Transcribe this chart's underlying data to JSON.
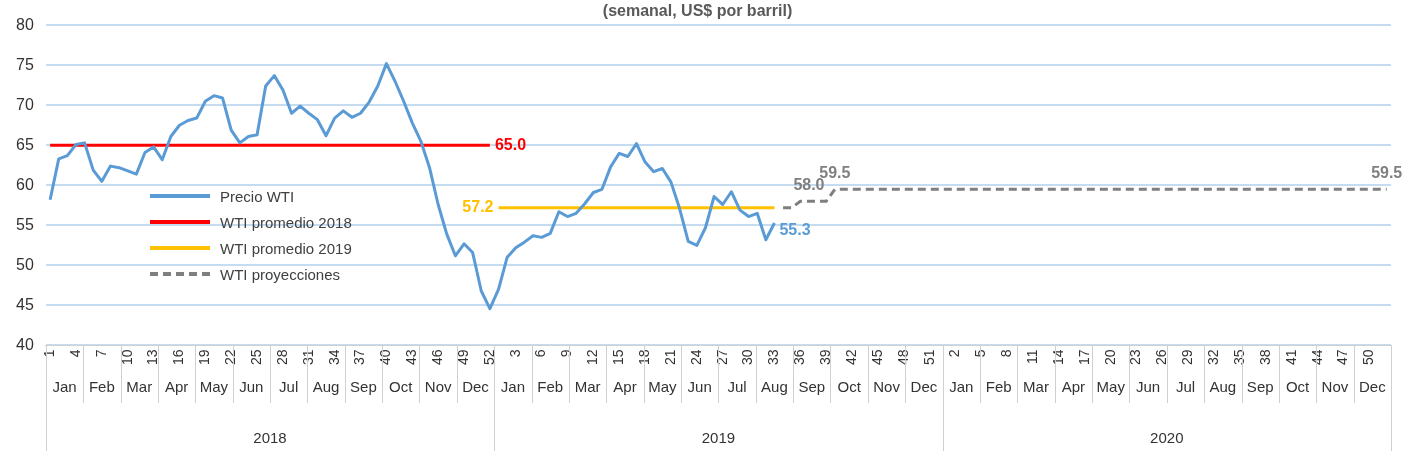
{
  "chart_data": {
    "type": "line",
    "title": "(semanal, US$ por barril)",
    "categories": [
      "1",
      null,
      null,
      "4",
      null,
      null,
      "7",
      null,
      null,
      "10",
      null,
      null,
      "13",
      null,
      null,
      "16",
      null,
      null,
      "19",
      null,
      null,
      "22",
      null,
      null,
      "25",
      null,
      null,
      "28",
      null,
      null,
      "31",
      null,
      null,
      "34",
      null,
      null,
      "37",
      null,
      null,
      "40",
      null,
      null,
      "43",
      null,
      null,
      "46",
      null,
      null,
      "49",
      null,
      null,
      "52",
      null,
      null,
      "3",
      null,
      null,
      "6",
      null,
      null,
      "9",
      null,
      null,
      "12",
      null,
      null,
      "15",
      null,
      null,
      "18",
      null,
      null,
      "21",
      null,
      null,
      "24",
      null,
      null,
      "27",
      null,
      null,
      "30",
      null,
      null,
      "33",
      null,
      null,
      "36",
      null,
      null,
      "39",
      null,
      null,
      "42",
      null,
      null,
      "45",
      null,
      null,
      "48",
      null,
      null,
      "51",
      null,
      null,
      "2",
      null,
      null,
      "5",
      null,
      null,
      "8",
      null,
      null,
      "11",
      null,
      null,
      "14",
      null,
      null,
      "17",
      null,
      null,
      "20",
      null,
      null,
      "23",
      null,
      null,
      "26",
      null,
      null,
      "29",
      null,
      null,
      "32",
      null,
      null,
      "35",
      null,
      null,
      "38",
      null,
      null,
      "41",
      null,
      null,
      "44",
      null,
      null,
      "47",
      null,
      null,
      "50",
      null,
      null
    ],
    "series": [
      {
        "name": "Precio WTI",
        "color": "#5b9bd5",
        "values": [
          58.2,
          63.3,
          63.7,
          65.1,
          65.3,
          61.9,
          60.5,
          62.4,
          62.2,
          61.8,
          61.4,
          64.1,
          64.8,
          63.2,
          66.1,
          67.5,
          68.1,
          68.4,
          70.5,
          71.2,
          70.9,
          66.9,
          65.3,
          66.1,
          66.3,
          72.4,
          73.7,
          71.9,
          69.0,
          69.9,
          69.0,
          68.2,
          66.2,
          68.4,
          69.3,
          68.5,
          69.0,
          70.4,
          72.4,
          75.2,
          73.0,
          70.5,
          67.8,
          65.5,
          62.2,
          57.6,
          53.9,
          51.2,
          52.7,
          51.6,
          46.8,
          44.6,
          47.0,
          51.0,
          52.2,
          52.9,
          53.7,
          53.5,
          54.0,
          56.7,
          56.1,
          56.5,
          57.7,
          59.1,
          59.5,
          62.3,
          64.0,
          63.6,
          65.2,
          62.9,
          61.7,
          62.1,
          60.4,
          57.1,
          53.0,
          52.5,
          54.7,
          58.6,
          57.6,
          59.2,
          56.9,
          56.1,
          56.5,
          53.2,
          55.3,
          null,
          null,
          null,
          null,
          null,
          null,
          null,
          null,
          null,
          null,
          null,
          null,
          null,
          null,
          null,
          null,
          null,
          null,
          null,
          null,
          null,
          null,
          null,
          null,
          null,
          null,
          null,
          null,
          null,
          null,
          null,
          null,
          null,
          null,
          null,
          null,
          null,
          null,
          null,
          null,
          null,
          null,
          null,
          null,
          null,
          null,
          null,
          null,
          null,
          null,
          null,
          null,
          null,
          null,
          null,
          null,
          null,
          null,
          null,
          null,
          null,
          null,
          null,
          null,
          null,
          null,
          null,
          null,
          null,
          null,
          null
        ],
        "value_labels": [
          null,
          null,
          null,
          null,
          null,
          null,
          null,
          null,
          null,
          null,
          null,
          null,
          null,
          null,
          null,
          null,
          null,
          null,
          null,
          null,
          null,
          null,
          null,
          null,
          null,
          null,
          null,
          null,
          null,
          null,
          null,
          null,
          null,
          null,
          null,
          null,
          null,
          null,
          null,
          null,
          null,
          null,
          null,
          null,
          null,
          null,
          null,
          null,
          null,
          null,
          null,
          null,
          null,
          null,
          null,
          null,
          null,
          null,
          null,
          null,
          null,
          null,
          null,
          null,
          null,
          null,
          null,
          null,
          null,
          null,
          null,
          null,
          null,
          null,
          null,
          null,
          null,
          null,
          null,
          null,
          null,
          null,
          null,
          null,
          "55.3",
          null,
          null,
          null,
          null,
          null,
          null,
          null,
          null,
          null,
          null,
          null,
          null,
          null,
          null,
          null,
          null,
          null,
          null,
          null,
          null,
          null,
          null,
          null,
          null,
          null,
          null,
          null,
          null,
          null,
          null,
          null,
          null,
          null,
          null,
          null,
          null,
          null,
          null,
          null,
          null,
          null,
          null,
          null,
          null,
          null,
          null,
          null,
          null,
          null,
          null,
          null,
          null,
          null,
          null,
          null,
          null,
          null,
          null,
          null,
          null,
          null,
          null,
          null,
          null,
          null,
          null,
          null,
          null,
          null,
          null,
          null
        ]
      },
      {
        "name": "WTI promedio 2018",
        "color": "#ff0000",
        "values": [
          65,
          65,
          65,
          65,
          65,
          65,
          65,
          65,
          65,
          65,
          65,
          65,
          65,
          65,
          65,
          65,
          65,
          65,
          65,
          65,
          65,
          65,
          65,
          65,
          65,
          65,
          65,
          65,
          65,
          65,
          65,
          65,
          65,
          65,
          65,
          65,
          65,
          65,
          65,
          65,
          65,
          65,
          65,
          65,
          65,
          65,
          65,
          65,
          65,
          65,
          65,
          65,
          null,
          null,
          null,
          null,
          null,
          null,
          null,
          null,
          null,
          null,
          null,
          null,
          null,
          null,
          null,
          null,
          null,
          null,
          null,
          null,
          null,
          null,
          null,
          null,
          null,
          null,
          null,
          null,
          null,
          null,
          null,
          null,
          null,
          null,
          null,
          null,
          null,
          null,
          null,
          null,
          null,
          null,
          null,
          null,
          null,
          null,
          null,
          null,
          null,
          null,
          null,
          null,
          null,
          null,
          null,
          null,
          null,
          null,
          null,
          null,
          null,
          null,
          null,
          null,
          null,
          null,
          null,
          null,
          null,
          null,
          null,
          null,
          null,
          null,
          null,
          null,
          null,
          null,
          null,
          null,
          null,
          null,
          null,
          null,
          null,
          null,
          null,
          null,
          null,
          null,
          null,
          null,
          null,
          null,
          null,
          null,
          null,
          null,
          null,
          null,
          null,
          null,
          null,
          null
        ],
        "value_labels": [
          null,
          null,
          null,
          null,
          null,
          null,
          null,
          null,
          null,
          null,
          null,
          null,
          null,
          null,
          null,
          null,
          null,
          null,
          null,
          null,
          null,
          null,
          null,
          null,
          null,
          null,
          null,
          null,
          null,
          null,
          null,
          null,
          null,
          null,
          null,
          null,
          null,
          null,
          null,
          null,
          null,
          null,
          null,
          null,
          null,
          null,
          null,
          null,
          null,
          null,
          null,
          "65.0",
          null,
          null,
          null,
          null,
          null,
          null,
          null,
          null,
          null,
          null,
          null,
          null,
          null,
          null,
          null,
          null,
          null,
          null,
          null,
          null,
          null,
          null,
          null,
          null,
          null,
          null,
          null,
          null,
          null,
          null,
          null,
          null,
          null,
          null,
          null,
          null,
          null,
          null,
          null,
          null,
          null,
          null,
          null,
          null,
          null,
          null,
          null,
          null,
          null,
          null,
          null,
          null,
          null,
          null,
          null,
          null,
          null,
          null,
          null,
          null,
          null,
          null,
          null,
          null,
          null,
          null,
          null,
          null,
          null,
          null,
          null,
          null,
          null,
          null,
          null,
          null,
          null,
          null,
          null,
          null,
          null,
          null,
          null,
          null,
          null,
          null,
          null,
          null,
          null,
          null,
          null,
          null,
          null,
          null,
          null,
          null,
          null,
          null,
          null,
          null,
          null,
          null,
          null,
          null
        ]
      },
      {
        "name": "WTI promedio 2019",
        "color": "#ffc000",
        "values": [
          null,
          null,
          null,
          null,
          null,
          null,
          null,
          null,
          null,
          null,
          null,
          null,
          null,
          null,
          null,
          null,
          null,
          null,
          null,
          null,
          null,
          null,
          null,
          null,
          null,
          null,
          null,
          null,
          null,
          null,
          null,
          null,
          null,
          null,
          null,
          null,
          null,
          null,
          null,
          null,
          null,
          null,
          null,
          null,
          null,
          null,
          null,
          null,
          null,
          null,
          null,
          null,
          57.2,
          57.2,
          57.2,
          57.2,
          57.2,
          57.2,
          57.2,
          57.2,
          57.2,
          57.2,
          57.2,
          57.2,
          57.2,
          57.2,
          57.2,
          57.2,
          57.2,
          57.2,
          57.2,
          57.2,
          57.2,
          57.2,
          57.2,
          57.2,
          57.2,
          57.2,
          57.2,
          57.2,
          57.2,
          57.2,
          57.2,
          57.2,
          57.2,
          null,
          null,
          null,
          null,
          null,
          null,
          null,
          null,
          null,
          null,
          null,
          null,
          null,
          null,
          null,
          null,
          null,
          null,
          null,
          null,
          null,
          null,
          null,
          null,
          null,
          null,
          null,
          null,
          null,
          null,
          null,
          null,
          null,
          null,
          null,
          null,
          null,
          null,
          null,
          null,
          null,
          null,
          null,
          null,
          null,
          null,
          null,
          null,
          null,
          null,
          null,
          null,
          null,
          null,
          null,
          null,
          null,
          null,
          null,
          null,
          null,
          null,
          null,
          null,
          null,
          null,
          null,
          null,
          null,
          null,
          null
        ],
        "value_labels": [
          null,
          null,
          null,
          null,
          null,
          null,
          null,
          null,
          null,
          null,
          null,
          null,
          null,
          null,
          null,
          null,
          null,
          null,
          null,
          null,
          null,
          null,
          null,
          null,
          null,
          null,
          null,
          null,
          null,
          null,
          null,
          null,
          null,
          null,
          null,
          null,
          null,
          null,
          null,
          null,
          null,
          null,
          null,
          null,
          null,
          null,
          null,
          null,
          null,
          null,
          null,
          null,
          "57.2",
          null,
          null,
          null,
          null,
          null,
          null,
          null,
          null,
          null,
          null,
          null,
          null,
          null,
          null,
          null,
          null,
          null,
          null,
          null,
          null,
          null,
          null,
          null,
          null,
          null,
          null,
          null,
          null,
          null,
          null,
          null,
          null,
          null,
          null,
          null,
          null,
          null,
          null,
          null,
          null,
          null,
          null,
          null,
          null,
          null,
          null,
          null,
          null,
          null,
          null,
          null,
          null,
          null,
          null,
          null,
          null,
          null,
          null,
          null,
          null,
          null,
          null,
          null,
          null,
          null,
          null,
          null,
          null,
          null,
          null,
          null,
          null,
          null,
          null,
          null,
          null,
          null,
          null,
          null,
          null,
          null,
          null,
          null,
          null,
          null,
          null,
          null,
          null,
          null,
          null,
          null,
          null,
          null,
          null,
          null,
          null,
          null,
          null,
          null,
          null,
          null,
          null,
          null
        ]
      },
      {
        "name": "WTI proyecciones",
        "color": "#7f7f7f",
        "line_style": "dashed",
        "values": [
          null,
          null,
          null,
          null,
          null,
          null,
          null,
          null,
          null,
          null,
          null,
          null,
          null,
          null,
          null,
          null,
          null,
          null,
          null,
          null,
          null,
          null,
          null,
          null,
          null,
          null,
          null,
          null,
          null,
          null,
          null,
          null,
          null,
          null,
          null,
          null,
          null,
          null,
          null,
          null,
          null,
          null,
          null,
          null,
          null,
          null,
          null,
          null,
          null,
          null,
          null,
          null,
          null,
          null,
          null,
          null,
          null,
          null,
          null,
          null,
          null,
          null,
          null,
          null,
          null,
          null,
          null,
          null,
          null,
          null,
          null,
          null,
          null,
          null,
          null,
          null,
          null,
          null,
          null,
          null,
          null,
          null,
          null,
          null,
          null,
          57.2,
          57.2,
          58.0,
          58.0,
          58.0,
          58.0,
          59.5,
          59.5,
          59.5,
          59.5,
          59.5,
          59.5,
          59.5,
          59.5,
          59.5,
          59.5,
          59.5,
          59.5,
          59.5,
          59.5,
          59.5,
          59.5,
          59.5,
          59.5,
          59.5,
          59.5,
          59.5,
          59.5,
          59.5,
          59.5,
          59.5,
          59.5,
          59.5,
          59.5,
          59.5,
          59.5,
          59.5,
          59.5,
          59.5,
          59.5,
          59.5,
          59.5,
          59.5,
          59.5,
          59.5,
          59.5,
          59.5,
          59.5,
          59.5,
          59.5,
          59.5,
          59.5,
          59.5,
          59.5,
          59.5,
          59.5,
          59.5,
          59.5,
          59.5,
          59.5,
          59.5,
          59.5,
          59.5,
          59.5,
          59.5,
          59.5,
          59.5,
          59.5,
          59.5,
          59.5,
          59.5
        ],
        "value_labels": [
          null,
          null,
          null,
          null,
          null,
          null,
          null,
          null,
          null,
          null,
          null,
          null,
          null,
          null,
          null,
          null,
          null,
          null,
          null,
          null,
          null,
          null,
          null,
          null,
          null,
          null,
          null,
          null,
          null,
          null,
          null,
          null,
          null,
          null,
          null,
          null,
          null,
          null,
          null,
          null,
          null,
          null,
          null,
          null,
          null,
          null,
          null,
          null,
          null,
          null,
          null,
          null,
          null,
          null,
          null,
          null,
          null,
          null,
          null,
          null,
          null,
          null,
          null,
          null,
          null,
          null,
          null,
          null,
          null,
          null,
          null,
          null,
          null,
          null,
          null,
          null,
          null,
          null,
          null,
          null,
          null,
          null,
          null,
          null,
          null,
          null,
          null,
          null,
          "58.0",
          null,
          null,
          "59.5",
          null,
          null,
          null,
          null,
          null,
          null,
          null,
          null,
          null,
          null,
          null,
          null,
          null,
          null,
          null,
          null,
          null,
          null,
          null,
          null,
          null,
          null,
          null,
          null,
          null,
          null,
          null,
          null,
          null,
          null,
          null,
          null,
          null,
          null,
          null,
          null,
          null,
          null,
          null,
          null,
          null,
          null,
          null,
          null,
          null,
          null,
          null,
          null,
          null,
          null,
          null,
          null,
          null,
          null,
          null,
          null,
          null,
          null,
          null,
          null,
          null,
          null,
          null,
          "59.5"
        ]
      }
    ],
    "ylim": [
      40,
      80
    ],
    "yticks": [
      40,
      45,
      50,
      55,
      60,
      65,
      70,
      75,
      80
    ],
    "grid": "y",
    "legend": "left",
    "annotations": [
      "Jan",
      "Feb",
      "Mar",
      "Apr",
      "May",
      "Jun",
      "Jul",
      "Aug",
      "Sep",
      "Oct",
      "Nov",
      "Dec",
      "Jan",
      "Feb",
      "Mar",
      "Apr",
      "May",
      "Jun",
      "Jul",
      "Aug",
      "Sep",
      "Oct",
      "Nov",
      "Dec",
      "Jan",
      "Feb",
      "Mar",
      "Apr",
      "May",
      "Jun",
      "Jul",
      "Aug",
      "Sep",
      "Oct",
      "Nov",
      "Dec",
      "2018",
      "2019",
      "2020"
    ]
  }
}
